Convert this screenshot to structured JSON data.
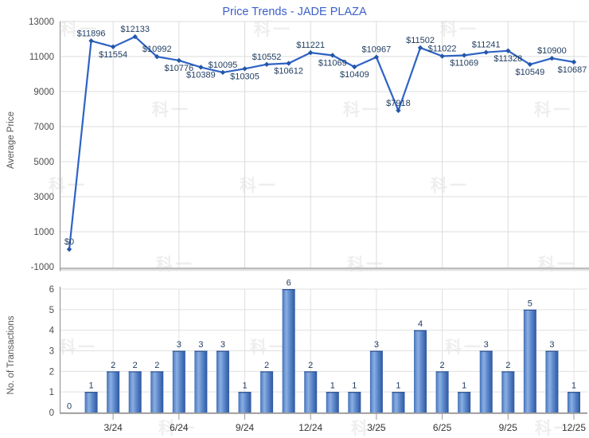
{
  "watermark": {
    "text": "科一"
  },
  "chart_data": [
    {
      "type": "line",
      "title": "Price Trends - JADE PLAZA",
      "ylabel": "Average Price",
      "values": [
        0,
        11896,
        11554,
        12133,
        10992,
        10776,
        10389,
        10095,
        10305,
        10552,
        10612,
        11221,
        11069,
        10409,
        10967,
        7918,
        11502,
        11022,
        11069,
        11241,
        11328,
        10549,
        10900,
        10687
      ],
      "point_labels": [
        "$0",
        "$11896",
        "$11554",
        "$12133",
        "$10992",
        "$10776",
        "$10389",
        "$10095",
        "$10305",
        "$10552",
        "$10612",
        "$11221",
        "$11069",
        "$10409",
        "$10967",
        "$7918",
        "$11502",
        "$11022",
        "$11069",
        "$11241",
        "$11328",
        "$10549",
        "$10900",
        "$10687"
      ],
      "label_side": [
        "above",
        "above",
        "below",
        "above",
        "above",
        "below",
        "below",
        "above",
        "below",
        "above",
        "below",
        "above",
        "below",
        "below",
        "above",
        "above",
        "above",
        "above",
        "below",
        "above",
        "below",
        "below",
        "above",
        "below"
      ],
      "yticks": [
        13000,
        11000,
        9000,
        7000,
        5000,
        3000,
        1000,
        -1000
      ],
      "ylim": [
        -1000,
        13000
      ],
      "xtick_labels": [
        "3/24",
        "6/24",
        "9/24",
        "12/24",
        "3/25",
        "6/25",
        "9/25",
        "12/25"
      ],
      "xtick_indices": [
        2,
        5,
        8,
        11,
        14,
        17,
        20,
        23
      ],
      "grid": true,
      "legend_position": "none",
      "line_color": "#2d63c5",
      "marker_color": "#2456a8",
      "label_color": "#1d3a5f",
      "title_color": "#3b5fcc"
    },
    {
      "type": "bar",
      "ylabel": "No. of Transactions",
      "values": [
        0,
        1,
        2,
        2,
        2,
        3,
        3,
        3,
        1,
        2,
        6,
        2,
        1,
        1,
        3,
        1,
        4,
        2,
        1,
        3,
        2,
        5,
        3,
        1
      ],
      "yticks": [
        0,
        1,
        2,
        3,
        4,
        5,
        6
      ],
      "ylim": [
        0,
        6
      ],
      "xtick_labels": [
        "3/24",
        "6/24",
        "9/24",
        "12/24",
        "3/25",
        "6/25",
        "9/25",
        "12/25"
      ],
      "xtick_indices": [
        2,
        5,
        8,
        11,
        14,
        17,
        20,
        23
      ],
      "grid": true,
      "bar_color": "#4f7fc7",
      "bar_edge_color": "#2b5191"
    }
  ]
}
